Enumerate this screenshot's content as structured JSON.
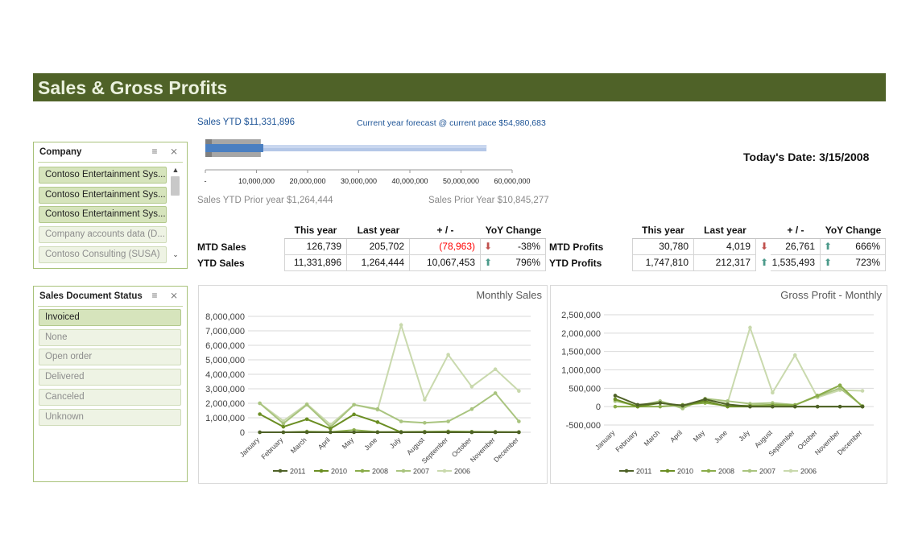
{
  "header": {
    "title": "Sales & Gross Profits"
  },
  "company_slicer": {
    "title": "Company",
    "items": [
      {
        "label": "Contoso Entertainment Sys...",
        "selected": true
      },
      {
        "label": "Contoso Entertainment Sys...",
        "selected": true
      },
      {
        "label": "Contoso Entertainment Sys...",
        "selected": true
      },
      {
        "label": "Company accounts data (D...",
        "selected": false
      },
      {
        "label": "Contoso Consulting (SUSA)",
        "selected": false
      }
    ]
  },
  "status_slicer": {
    "title": "Sales Document Status",
    "items": [
      {
        "label": "Invoiced",
        "selected": true
      },
      {
        "label": "None",
        "selected": false
      },
      {
        "label": "Open order",
        "selected": false
      },
      {
        "label": "Delivered",
        "selected": false
      },
      {
        "label": "Canceled",
        "selected": false
      },
      {
        "label": "Unknown",
        "selected": false
      }
    ]
  },
  "bullet": {
    "sales_ytd": "Sales YTD $11,331,896",
    "forecast": "Current year forecast @ current pace $54,980,683",
    "prior_ytd": "Sales YTD Prior year  $1,264,444",
    "prior_year": "Sales Prior Year $10,845,277",
    "axis_ticks": [
      "-",
      "10,000,000",
      "20,000,000",
      "30,000,000",
      "40,000,000",
      "50,000,000",
      "60,000,000"
    ],
    "axis_max": 60000000,
    "sales_ytd_value": 11331896,
    "forecast_value": 54980683,
    "prior_ytd_value": 1264444,
    "prior_year_value": 10845277
  },
  "today": {
    "label": "Today's Date:",
    "value": "3/15/2008"
  },
  "sales_table": {
    "headers": [
      "This year",
      "Last year",
      "+ / -",
      "YoY Change"
    ],
    "rows": [
      {
        "label": "MTD Sales",
        "this_year": "126,739",
        "last_year": "205,702",
        "diff": "(78,963)",
        "trend": "down",
        "yoy": "-38%"
      },
      {
        "label": "YTD Sales",
        "this_year": "11,331,896",
        "last_year": "1,264,444",
        "diff": "10,067,453",
        "trend": "up",
        "yoy": "796%"
      }
    ]
  },
  "profit_table": {
    "headers": [
      "This year",
      "Last year",
      "+ / -",
      "YoY Change"
    ],
    "rows": [
      {
        "label": "MTD Profits",
        "this_year": "30,780",
        "last_year": "4,019",
        "trend_last": "down",
        "diff": "26,761",
        "trend": "up",
        "yoy": "666%"
      },
      {
        "label": "YTD Profits",
        "this_year": "1,747,810",
        "last_year": "212,317",
        "trend_last": "up",
        "diff": "1,535,493",
        "trend": "up",
        "yoy": "723%"
      }
    ]
  },
  "colors": {
    "header_bg": "#4f6228",
    "header_text": "#ebf1de",
    "series_2011": "#4f6228",
    "series_2010": "#6b8e23",
    "series_2008": "#8aac4a",
    "series_2007": "#a9c47f",
    "series_2006": "#c9d9ad"
  },
  "chart_data": [
    {
      "type": "line",
      "title": "Monthly Sales",
      "categories": [
        "January",
        "February",
        "March",
        "April",
        "May",
        "June",
        "July",
        "August",
        "September",
        "October",
        "November",
        "December"
      ],
      "y_ticks": [
        "8,000,000",
        "7,000,000",
        "6,000,000",
        "5,000,000",
        "4,000,000",
        "3,000,000",
        "2,000,000",
        "1,000,000",
        "0"
      ],
      "ylim": [
        0,
        8000000
      ],
      "grid": true,
      "legend": "bottom",
      "series": [
        {
          "name": "2011",
          "values": [
            0,
            0,
            0,
            0,
            0,
            0,
            0,
            0,
            0,
            0,
            0,
            0
          ]
        },
        {
          "name": "2010",
          "values": [
            1250000,
            380000,
            900000,
            250000,
            1230000,
            700000,
            0,
            0,
            0,
            0,
            0,
            0
          ]
        },
        {
          "name": "2008",
          "values": [
            0,
            0,
            50000,
            20000,
            150000,
            20000,
            30000,
            40000,
            60000,
            40000,
            30000,
            20000
          ]
        },
        {
          "name": "2007",
          "values": [
            2000000,
            600000,
            1900000,
            350000,
            1900000,
            1600000,
            750000,
            650000,
            750000,
            1600000,
            2700000,
            750000
          ]
        },
        {
          "name": "2006",
          "values": [
            2000000,
            780000,
            1950000,
            530000,
            1900000,
            1550000,
            7400000,
            2250000,
            5350000,
            3150000,
            4350000,
            2850000
          ]
        }
      ]
    },
    {
      "type": "line",
      "title": "Gross Profit - Monthly",
      "categories": [
        "January",
        "February",
        "March",
        "April",
        "May",
        "June",
        "July",
        "August",
        "September",
        "October",
        "November",
        "December"
      ],
      "y_ticks": [
        "2,500,000",
        "2,000,000",
        "1,500,000",
        "1,000,000",
        "500,000",
        "0",
        "-500,000"
      ],
      "ylim": [
        -500000,
        2500000
      ],
      "grid": true,
      "legend": "bottom",
      "series": [
        {
          "name": "2011",
          "values": [
            300000,
            50000,
            100000,
            30000,
            200000,
            60000,
            0,
            0,
            0,
            0,
            0,
            0
          ]
        },
        {
          "name": "2010",
          "values": [
            200000,
            0,
            100000,
            20000,
            150000,
            0,
            0,
            0,
            0,
            0,
            0,
            0
          ]
        },
        {
          "name": "2008",
          "values": [
            0,
            0,
            0,
            50000,
            100000,
            20000,
            30000,
            50000,
            40000,
            300000,
            580000,
            0
          ]
        },
        {
          "name": "2007",
          "values": [
            150000,
            20000,
            150000,
            -50000,
            220000,
            150000,
            80000,
            100000,
            50000,
            280000,
            500000,
            20000
          ]
        },
        {
          "name": "2006",
          "values": [
            200000,
            0,
            150000,
            -20000,
            180000,
            100000,
            2150000,
            380000,
            1400000,
            250000,
            450000,
            430000
          ]
        }
      ]
    }
  ]
}
